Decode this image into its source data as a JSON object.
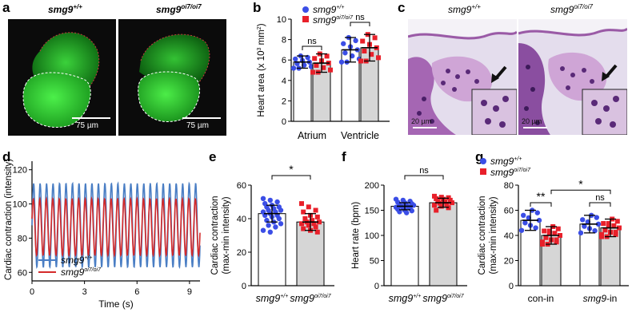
{
  "panel_labels": {
    "a": "a",
    "b": "b",
    "c": "c",
    "d": "d",
    "e": "e",
    "f": "f",
    "g": "g"
  },
  "panel_a": {
    "left_title": "smg9",
    "left_sup": "+/+",
    "right_title": "smg9",
    "right_sup": "oi7/oi7",
    "scale_left": "75 µm",
    "scale_right": "75 µm"
  },
  "panel_c": {
    "left_title": "smg9",
    "left_sup": "+/+",
    "right_title": "smg9",
    "right_sup": "oi7/oi7",
    "scale_left": "20 µm",
    "scale_right": "20 µm"
  },
  "colors": {
    "wt": "#3b4ee6",
    "mut": "#e8202a",
    "bar_wt": "#ffffff",
    "bar_mut": "#d6d6d6",
    "line_wt": "#4a7ec4",
    "line_mut": "#d42a2a"
  },
  "chart_data": [
    {
      "id": "b",
      "type": "bar",
      "categories": [
        "Atrium",
        "Ventricle"
      ],
      "ylabel": "Heart area (x 10",
      "ylabel_sup": "3",
      "ylabel_tail": " mm",
      "ylabel_sup2": "2",
      "ylabel_end": ")",
      "ylim": [
        0,
        10
      ],
      "yticks": [
        "0",
        "2",
        "4",
        "6",
        "8",
        "10"
      ],
      "legend": [
        {
          "name": "smg9",
          "sup": "+/+"
        },
        {
          "name": "smg9",
          "sup": "oi7/oi7"
        }
      ],
      "series": [
        {
          "name": "smg9+/+",
          "values": [
            5.8,
            7.0
          ],
          "err": [
            0.6,
            1.2
          ]
        },
        {
          "name": "smg9oi7/oi7",
          "values": [
            5.7,
            7.2
          ],
          "err": [
            0.9,
            1.3
          ]
        }
      ],
      "annotations": [
        "ns",
        "ns"
      ]
    },
    {
      "id": "d",
      "type": "line",
      "xlabel": "Time (s)",
      "ylabel": "Cardiac contraction (intensity)",
      "xlim": [
        0,
        9.6
      ],
      "ylim": [
        55,
        125
      ],
      "xticks": [
        "0",
        "3",
        "6",
        "9"
      ],
      "yticks": [
        "60",
        "80",
        "100",
        "120"
      ],
      "series": [
        {
          "name": "smg9",
          "sup": "+/+",
          "amp": [
            63,
            112
          ],
          "freq": 2.7
        },
        {
          "name": "smg9",
          "sup": "oi7/oi7",
          "amp": [
            70,
            103
          ],
          "freq": 2.7
        }
      ]
    },
    {
      "id": "e",
      "type": "bar",
      "ylabel": "Cardiac contraction",
      "ylabel2": "(max-min intensity)",
      "ylim": [
        0,
        60
      ],
      "yticks": [
        "0",
        "20",
        "40",
        "60"
      ],
      "categories": [
        {
          "name": "smg9",
          "sup": "+/+"
        },
        {
          "name": "smg9",
          "sup": "oi7/oi7"
        }
      ],
      "values": [
        43,
        38
      ],
      "err": [
        5,
        5
      ],
      "points_wt": [
        52,
        51,
        50,
        49,
        48,
        47,
        47,
        46,
        45,
        45,
        44,
        44,
        43,
        42,
        42,
        41,
        40,
        39,
        38,
        37,
        36,
        35,
        33,
        32
      ],
      "points_mut": [
        49,
        47,
        45,
        44,
        42,
        41,
        40,
        39,
        38,
        38,
        37,
        37,
        36,
        35,
        34,
        33,
        32
      ],
      "annotation": "*"
    },
    {
      "id": "f",
      "type": "bar",
      "ylabel": "Heart rate (bpm)",
      "ylim": [
        0,
        200
      ],
      "yticks": [
        "0",
        "50",
        "100",
        "150",
        "200"
      ],
      "categories": [
        {
          "name": "smg9",
          "sup": "+/+"
        },
        {
          "name": "smg9",
          "sup": "oi7/oi7"
        }
      ],
      "values": [
        158,
        165
      ],
      "err": [
        7,
        9
      ],
      "points_wt": [
        172,
        170,
        168,
        166,
        165,
        163,
        162,
        160,
        160,
        158,
        157,
        156,
        155,
        154,
        152,
        150,
        149,
        147,
        145
      ],
      "points_mut": [
        178,
        176,
        175,
        173,
        172,
        170,
        168,
        167,
        165,
        164,
        162,
        160,
        158,
        155,
        150
      ],
      "annotation": "ns"
    },
    {
      "id": "g",
      "type": "bar",
      "ylabel": "Cardiac contraction",
      "ylabel2": "(max-min intensity)",
      "ylim": [
        0,
        80
      ],
      "yticks": [
        "0",
        "20",
        "40",
        "60",
        "80"
      ],
      "categories": [
        "con-in",
        "smg9-in"
      ],
      "category_parts": [
        {
          "pre": "",
          "ital": "",
          "post": "con-in"
        },
        {
          "pre": "",
          "ital": "smg9",
          "post": "-in"
        }
      ],
      "legend": [
        {
          "name": "smg9",
          "sup": "+/+"
        },
        {
          "name": "smg9",
          "sup": "oi7/oi7"
        }
      ],
      "series": [
        {
          "name": "smg9+/+",
          "values": [
            52,
            49
          ],
          "err": [
            8,
            7
          ]
        },
        {
          "name": "smg9oi7/oi7",
          "values": [
            40,
            46
          ],
          "err": [
            7,
            7
          ]
        }
      ],
      "annotations": [
        "**",
        "ns",
        "*"
      ]
    }
  ]
}
